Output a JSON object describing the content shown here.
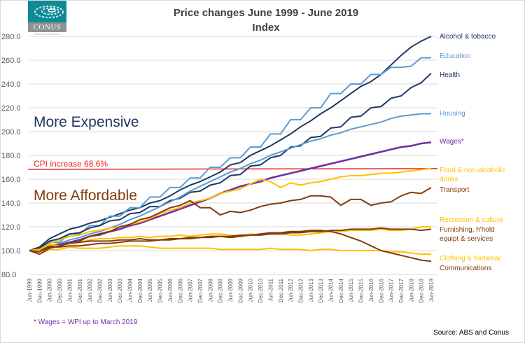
{
  "logo": {
    "name": "CONUS",
    "subtitle": "Business Consultancy Services"
  },
  "chart_data": {
    "type": "line",
    "title": "Price changes June 1999 - June 2019",
    "subtitle": "Index",
    "xlabel": "",
    "ylabel": "",
    "ylim": [
      80,
      280
    ],
    "yticks": [
      80,
      100,
      120,
      140,
      160,
      180,
      200,
      220,
      240,
      260,
      280
    ],
    "ytick_labels": [
      "80.0",
      "100.0",
      "120.0",
      "140.0",
      "160.0",
      "180.0",
      "200.0",
      "220.0",
      "240.0",
      "260.0",
      "280.0"
    ],
    "grid": true,
    "legend_placement": "right (direct labels)",
    "categories": [
      "Jun-1999",
      "Dec-1999",
      "Jun-2000",
      "Dec-2000",
      "Jun-2001",
      "Dec-2001",
      "Jun-2002",
      "Dec-2002",
      "Jun-2003",
      "Dec-2003",
      "Jun-2004",
      "Dec-2004",
      "Jun-2005",
      "Dec-2005",
      "Jun-2006",
      "Dec-2006",
      "Jun-2007",
      "Dec-2007",
      "Jun-2008",
      "Dec-2008",
      "Jun-2009",
      "Dec-2009",
      "Jun-2010",
      "Dec-2010",
      "Jun-2011",
      "Dec-2011",
      "Jun-2012",
      "Dec-2012",
      "Jun-2013",
      "Dec-2013",
      "Jun-2014",
      "Dec-2014",
      "Jun-2015",
      "Dec-2015",
      "Jun-2016",
      "Dec-2016",
      "Jun-2017",
      "Dec-2017",
      "Jun-2018",
      "Dec-2018",
      "Jun-2019"
    ],
    "reference_line": {
      "label": "CPI increase 68.6%",
      "value": 168.6,
      "color": "#e8252b"
    },
    "annotations": [
      {
        "text": "More Expensive",
        "color": "#1f3864"
      },
      {
        "text": "More Affordable",
        "color": "#843c0c"
      }
    ],
    "series": [
      {
        "name": "Alcohol & tobacco",
        "color": "#1f3864",
        "label_color": "#1f3864",
        "values": [
          100,
          103,
          110,
          114,
          118,
          120,
          123,
          125,
          128,
          131,
          134,
          136,
          140,
          142,
          146,
          151,
          155,
          158,
          162,
          166,
          172,
          174,
          180,
          184,
          188,
          193,
          198,
          204,
          209,
          215,
          220,
          226,
          232,
          238,
          242,
          248,
          256,
          264,
          271,
          276,
          280
        ]
      },
      {
        "name": "Education",
        "color": "#5b9bd5",
        "label_color": "#5b9bd5",
        "values": [
          100,
          100,
          107,
          107,
          114,
          114,
          121,
          121,
          129,
          129,
          136,
          136,
          145,
          145,
          153,
          153,
          161,
          161,
          170,
          170,
          178,
          178,
          187,
          187,
          198,
          198,
          210,
          210,
          220,
          220,
          232,
          232,
          240,
          240,
          248,
          248,
          254,
          254,
          255,
          262,
          262
        ]
      },
      {
        "name": "Health",
        "color": "#1f3864",
        "label_color": "#1f3864",
        "values": [
          100,
          102,
          108,
          110,
          114,
          115,
          119,
          121,
          125,
          126,
          131,
          132,
          137,
          137,
          142,
          144,
          149,
          150,
          155,
          157,
          163,
          164,
          171,
          172,
          178,
          180,
          187,
          188,
          195,
          196,
          203,
          204,
          212,
          213,
          220,
          221,
          228,
          230,
          237,
          241,
          249
        ]
      },
      {
        "name": "Housing",
        "color": "#5b9bd5",
        "label_color": "#5b9bd5",
        "values": [
          100,
          101,
          104,
          106,
          109,
          111,
          114,
          116,
          119,
          122,
          126,
          129,
          133,
          137,
          141,
          145,
          150,
          154,
          158,
          162,
          166,
          169,
          173,
          176,
          180,
          183,
          186,
          189,
          192,
          194,
          197,
          199,
          202,
          204,
          206,
          208,
          211,
          213,
          214,
          215,
          215
        ]
      },
      {
        "name": "Wages*",
        "color": "#7030a0",
        "label_color": "#7030a0",
        "values": [
          100,
          101,
          103,
          105,
          107,
          109,
          112,
          114,
          116,
          118,
          121,
          123,
          126,
          129,
          132,
          135,
          138,
          141,
          144,
          148,
          151,
          154,
          156,
          158,
          161,
          163,
          165,
          167,
          169,
          171,
          173,
          175,
          177,
          179,
          181,
          183,
          185,
          187,
          188,
          190,
          191
        ]
      },
      {
        "name": "Food & non-alcoholic drinks",
        "color": "#ffc000",
        "label_color": "#ffc000",
        "values": [
          100,
          100,
          106,
          109,
          112,
          113,
          116,
          117,
          119,
          120,
          122,
          124,
          127,
          131,
          134,
          136,
          140,
          142,
          144,
          148,
          150,
          152,
          156,
          160,
          158,
          153,
          157,
          155,
          157,
          158,
          160,
          162,
          163,
          163,
          164,
          165,
          165,
          166,
          167,
          168,
          169
        ]
      },
      {
        "name": "Transport",
        "color": "#843c0c",
        "label_color": "#843c0c",
        "values": [
          100,
          99,
          105,
          104,
          106,
          108,
          112,
          113,
          116,
          120,
          122,
          126,
          128,
          132,
          136,
          138,
          142,
          136,
          136,
          130,
          133,
          132,
          134,
          137,
          139,
          140,
          142,
          143,
          146,
          146,
          145,
          138,
          143,
          143,
          138,
          140,
          141,
          146,
          149,
          148,
          153
        ]
      },
      {
        "name": "Recreation & culture",
        "color": "#ffc000",
        "label_color": "#ffc000",
        "values": [
          100,
          101,
          105,
          104,
          106,
          107,
          109,
          110,
          110,
          111,
          111,
          112,
          111,
          112,
          112,
          113,
          112,
          113,
          114,
          114,
          113,
          112,
          114,
          113,
          114,
          114,
          113,
          113,
          114,
          115,
          116,
          116,
          117,
          117,
          117,
          118,
          117,
          117,
          118,
          120,
          120
        ]
      },
      {
        "name": "Furnishing, h'hold equipt & services",
        "color": "#843c0c",
        "label_color": "#843c0c",
        "values": [
          100,
          99,
          103,
          103,
          104,
          104,
          105,
          106,
          106,
          107,
          108,
          108,
          108,
          109,
          109,
          110,
          110,
          111,
          111,
          112,
          111,
          112,
          113,
          113,
          114,
          114,
          115,
          115,
          116,
          116,
          117,
          117,
          118,
          118,
          118,
          119,
          118,
          118,
          118,
          117,
          118
        ]
      },
      {
        "name": "Clothing & footwear",
        "color": "#ffc000",
        "label_color": "#ffc000",
        "values": [
          100,
          97,
          101,
          101,
          103,
          102,
          102,
          102,
          103,
          104,
          104,
          104,
          103,
          102,
          102,
          102,
          102,
          102,
          102,
          101,
          101,
          101,
          101,
          101,
          102,
          101,
          101,
          101,
          100,
          101,
          101,
          100,
          100,
          100,
          100,
          100,
          99,
          99,
          98,
          97,
          97
        ]
      },
      {
        "name": "Communications",
        "color": "#843c0c",
        "label_color": "#843c0c",
        "values": [
          100,
          97,
          102,
          104,
          106,
          107,
          108,
          108,
          108,
          109,
          109,
          110,
          109,
          109,
          110,
          110,
          111,
          111,
          112,
          112,
          112,
          113,
          113,
          114,
          115,
          115,
          116,
          116,
          117,
          117,
          116,
          114,
          111,
          108,
          104,
          100,
          98,
          96,
          94,
          92,
          91
        ]
      }
    ]
  },
  "footnote": "* Wages = WPI up to March 2019",
  "source": "Source: ABS and Conus"
}
